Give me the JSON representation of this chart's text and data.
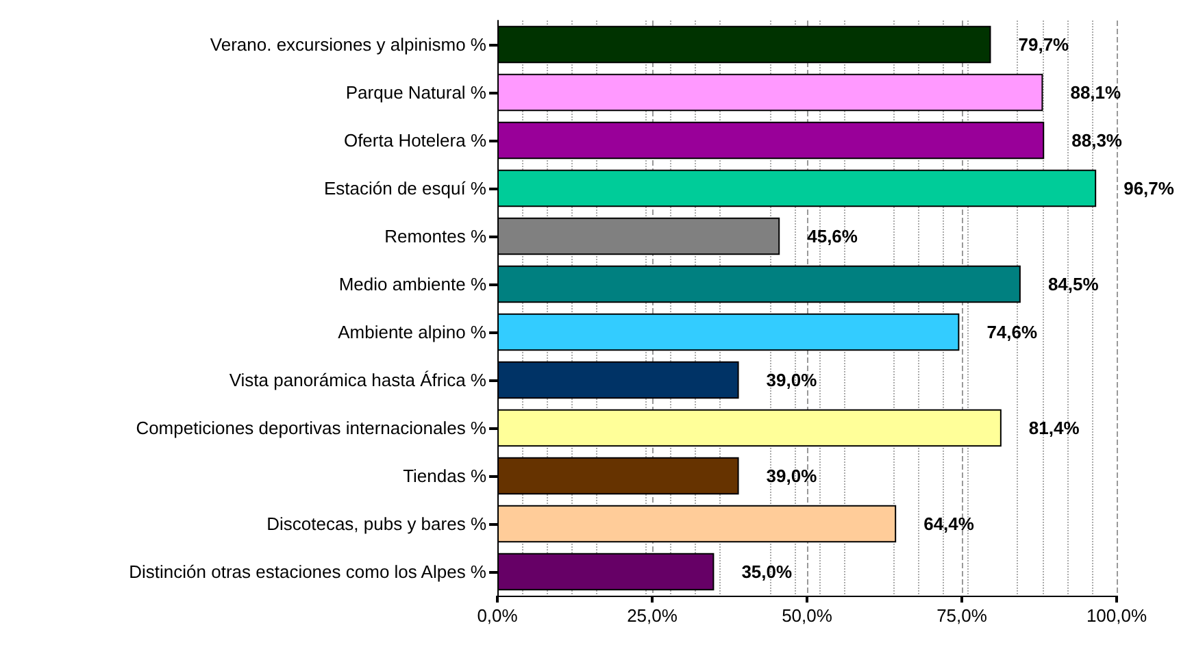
{
  "chart_data": {
    "type": "bar",
    "orientation": "horizontal",
    "categories": [
      "Verano. excursiones y alpinismo %",
      "Parque Natural %",
      "Oferta Hotelera %",
      "Estación de esquí %",
      "Remontes %",
      "Medio ambiente %",
      "Ambiente alpino %",
      "Vista panorámica hasta África %",
      "Competiciones deportivas internacionales %",
      "Tiendas %",
      "Discotecas, pubs y bares %",
      "Distinción otras estaciones como los Alpes %"
    ],
    "values": [
      79.7,
      88.1,
      88.3,
      96.7,
      45.6,
      84.5,
      74.6,
      39.0,
      81.4,
      39.0,
      64.4,
      35.0
    ],
    "colors": [
      "#003300",
      "#ff99ff",
      "#990099",
      "#00cc99",
      "#808080",
      "#008080",
      "#33ccff",
      "#003366",
      "#ffff99",
      "#663300",
      "#ffcc99",
      "#660066"
    ],
    "value_labels": [
      "79,7%",
      "88,1%",
      "88,3%",
      "96,7%",
      "45,6%",
      "84,5%",
      "74,6%",
      "39,0%",
      "81,4%",
      "39,0%",
      "64,4%",
      "35,0%"
    ],
    "xlim": [
      0,
      100
    ],
    "xticks": [
      {
        "value": 0,
        "label": "0,0%"
      },
      {
        "value": 25,
        "label": "25,0%"
      },
      {
        "value": 50,
        "label": "50,0%"
      },
      {
        "value": 75,
        "label": "75,0%"
      },
      {
        "value": 100,
        "label": "100,0%"
      }
    ],
    "grid": "x"
  }
}
